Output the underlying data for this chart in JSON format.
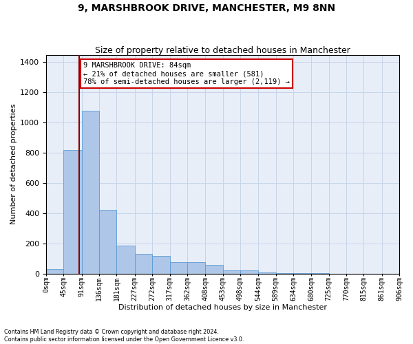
{
  "title": "9, MARSHBROOK DRIVE, MANCHESTER, M9 8NN",
  "subtitle": "Size of property relative to detached houses in Manchester",
  "xlabel": "Distribution of detached houses by size in Manchester",
  "ylabel": "Number of detached properties",
  "footnote1": "Contains HM Land Registry data © Crown copyright and database right 2024.",
  "footnote2": "Contains public sector information licensed under the Open Government Licence v3.0.",
  "annotation_line1": "9 MARSHBROOK DRIVE: 84sqm",
  "annotation_line2": "← 21% of detached houses are smaller (581)",
  "annotation_line3": "78% of semi-detached houses are larger (2,119) →",
  "property_size": 84,
  "bar_edges": [
    0,
    45,
    91,
    136,
    181,
    227,
    272,
    317,
    362,
    408,
    453,
    498,
    544,
    589,
    634,
    680,
    725,
    770,
    815,
    861,
    906
  ],
  "bar_heights": [
    30,
    820,
    1080,
    420,
    185,
    130,
    115,
    75,
    75,
    55,
    20,
    20,
    5,
    2,
    1,
    1,
    0,
    0,
    0,
    0
  ],
  "bar_color": "#aec6e8",
  "bar_edge_color": "#5b9bd5",
  "vline_color": "#8b0000",
  "vline_x": 84,
  "ylim": [
    0,
    1450
  ],
  "yticks": [
    0,
    200,
    400,
    600,
    800,
    1000,
    1200,
    1400
  ],
  "tick_labels": [
    "0sqm",
    "45sqm",
    "91sqm",
    "136sqm",
    "181sqm",
    "227sqm",
    "272sqm",
    "317sqm",
    "362sqm",
    "408sqm",
    "453sqm",
    "498sqm",
    "544sqm",
    "589sqm",
    "634sqm",
    "680sqm",
    "725sqm",
    "770sqm",
    "815sqm",
    "861sqm",
    "906sqm"
  ],
  "background_color": "#ffffff",
  "plot_bg_color": "#e8eef8",
  "grid_color": "#c8d4e8",
  "annotation_box_color": "#cc0000",
  "title_fontsize": 10,
  "subtitle_fontsize": 9,
  "ylabel_fontsize": 8,
  "xlabel_fontsize": 8,
  "ytick_fontsize": 8,
  "xtick_fontsize": 7
}
